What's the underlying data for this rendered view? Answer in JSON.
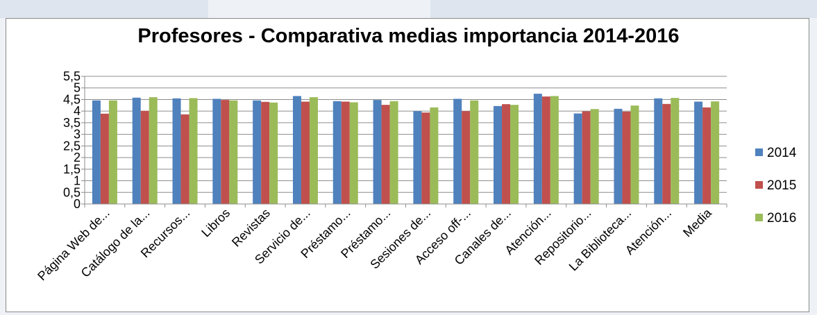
{
  "chart_data": {
    "type": "bar",
    "title": "Profesores - Comparativa medias importancia 2014-2016",
    "xlabel": "",
    "ylabel": "",
    "ylim": [
      0,
      5.5
    ],
    "y_ticks": [
      "0",
      "0,5",
      "1",
      "1,5",
      "2",
      "2,5",
      "3",
      "3,5",
      "4",
      "4,5",
      "5",
      "5,5"
    ],
    "grid": true,
    "legend_position": "right",
    "categories": [
      "Página Web de...",
      "Catálogo de la...",
      "Recursos...",
      "Libros",
      "Revistas",
      "Servicio de...",
      "Préstamo...",
      "Préstamo...",
      "Sesiones de...",
      "Acceso off-...",
      "Canales de...",
      "Atención...",
      "Repositorio...",
      "La Biblioteca...",
      "Atención...",
      "Media"
    ],
    "series": [
      {
        "name": "2014",
        "color": "#4f81bd",
        "values": [
          4.46,
          4.58,
          4.55,
          4.53,
          4.46,
          4.65,
          4.43,
          4.48,
          4.0,
          4.53,
          4.22,
          4.75,
          3.9,
          4.1,
          4.55,
          4.41
        ]
      },
      {
        "name": "2015",
        "color": "#c0504d",
        "values": [
          3.89,
          4.01,
          3.86,
          4.48,
          4.4,
          4.41,
          4.41,
          4.27,
          3.94,
          4.0,
          4.3,
          4.63,
          3.99,
          3.98,
          4.31,
          4.16
        ]
      },
      {
        "name": "2016",
        "color": "#9bbb59",
        "values": [
          4.46,
          4.6,
          4.56,
          4.46,
          4.37,
          4.6,
          4.38,
          4.43,
          4.16,
          4.46,
          4.27,
          4.65,
          4.09,
          4.24,
          4.57,
          4.42
        ]
      }
    ]
  }
}
